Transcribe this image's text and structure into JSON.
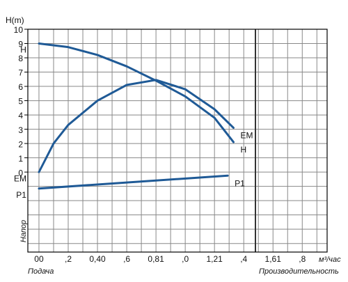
{
  "chart_data": {
    "type": "line",
    "y_label": "H(m)",
    "y_caption": "Напор",
    "x_caption_left": "Подача",
    "x_caption_right": "Производительность",
    "x_unit": "м³/час",
    "xlim": [
      -0.076,
      1.97
    ],
    "ylim": [
      -5.6,
      10
    ],
    "xticks": [
      {
        "value": 0,
        "label": "00"
      },
      {
        "value": 0.2,
        "label": ",2"
      },
      {
        "value": 0.4,
        "label": "0,40"
      },
      {
        "value": 0.6,
        "label": ",6"
      },
      {
        "value": 0.8,
        "label": "0,81"
      },
      {
        "value": 1.0,
        "label": ",0"
      },
      {
        "value": 1.2,
        "label": "1,21"
      },
      {
        "value": 1.4,
        "label": ",4"
      },
      {
        "value": 1.6,
        "label": "1,61"
      },
      {
        "value": 1.8,
        "label": ",8"
      }
    ],
    "yticks": [
      0,
      1,
      2,
      3,
      4,
      5,
      6,
      7,
      8,
      9,
      10
    ],
    "grid": true,
    "series": [
      {
        "name": "H",
        "color": "#1f5a96",
        "x": [
          0,
          0.2,
          0.4,
          0.6,
          0.8,
          1.0,
          1.2,
          1.33
        ],
        "values": [
          9.0,
          8.75,
          8.2,
          7.4,
          6.4,
          5.3,
          3.8,
          2.1
        ]
      },
      {
        "name": "EM",
        "color": "#1f5a96",
        "x": [
          0,
          0.1,
          0.2,
          0.4,
          0.6,
          0.8,
          1.0,
          1.2,
          1.33
        ],
        "values": [
          0,
          2.0,
          3.3,
          5.0,
          6.1,
          6.45,
          5.8,
          4.4,
          3.1
        ]
      },
      {
        "name": "P1",
        "color": "#1f5a96",
        "x": [
          0,
          1.29
        ],
        "values": [
          -1.15,
          -0.25
        ]
      }
    ]
  }
}
